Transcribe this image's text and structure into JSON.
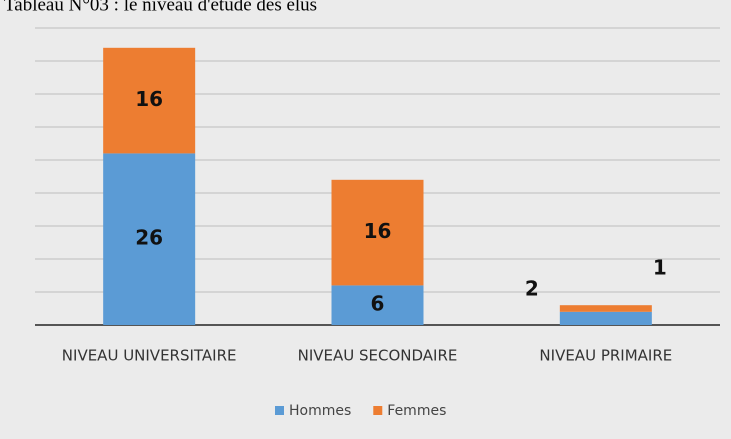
{
  "chart_data": {
    "type": "stacked_bar",
    "title": "Tableau N°03 : le niveau d'étude des élus",
    "categories": [
      "NIVEAU UNIVERSITAIRE",
      "NIVEAU SECONDAIRE",
      "NIVEAU PRIMAIRE"
    ],
    "series": [
      {
        "name": "Hommes",
        "color": "#5b9bd5",
        "values": [
          26,
          6,
          2
        ]
      },
      {
        "name": "Femmes",
        "color": "#ed7d31",
        "values": [
          16,
          16,
          1
        ]
      }
    ],
    "ylim": [
      0,
      45
    ],
    "yticks": [
      0,
      5,
      10,
      15,
      20,
      25,
      30,
      35,
      40,
      45
    ],
    "grid": true,
    "legend": "bottom"
  }
}
